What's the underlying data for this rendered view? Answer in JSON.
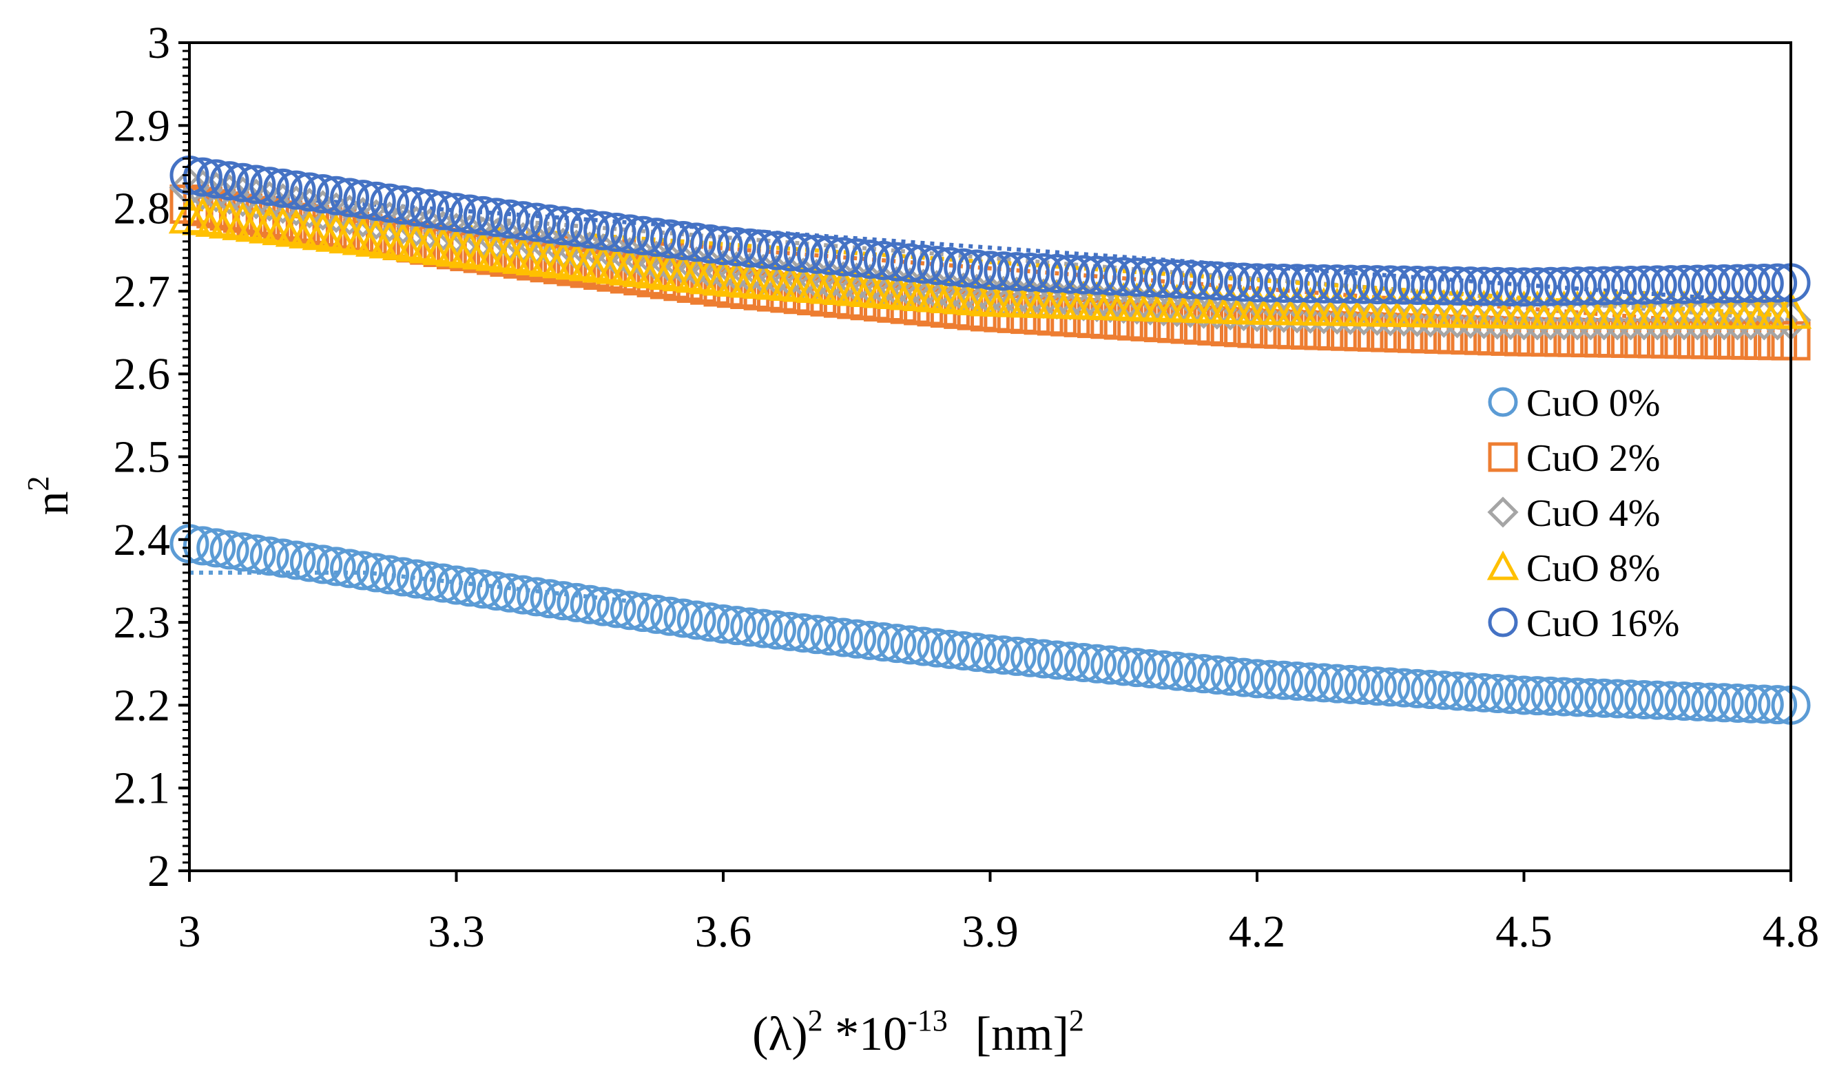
{
  "chart_data": {
    "type": "scatter",
    "x_tick_labels": [
      "3",
      "3.3",
      "3.6",
      "3.9",
      "4.2",
      "4.5",
      "4.8"
    ],
    "y_tick_labels": [
      "2",
      "2.1",
      "2.2",
      "2.3",
      "2.4",
      "2.5",
      "2.6",
      "2.7",
      "2.8",
      "2.9",
      "3"
    ],
    "xlim": [
      3,
      4.8
    ],
    "ylim": [
      2,
      3
    ],
    "xlabel": {
      "lambda": "(λ)",
      "sup1": "2",
      "mid": " *10",
      "exp": "-13",
      "unit": "[nm]",
      "sup2": "2"
    },
    "ylabel": {
      "base": "n",
      "sup": "2"
    },
    "legend_position": "right-middle",
    "series": [
      {
        "name": "CuO 0%",
        "marker": "circle",
        "color": "#5B9BD5",
        "x": [
          3.0,
          3.3,
          3.6,
          3.9,
          4.2,
          4.5,
          4.8
        ],
        "y": [
          2.395,
          2.345,
          2.298,
          2.262,
          2.232,
          2.212,
          2.2
        ],
        "fit": [
          [
            3.0,
            2.36
          ],
          [
            3.2,
            2.36
          ],
          [
            3.5,
            2.325
          ]
        ]
      },
      {
        "name": "CuO 2%",
        "marker": "square",
        "color": "#ED7D31",
        "x": [
          3.0,
          3.3,
          3.6,
          3.9,
          4.2,
          4.5,
          4.8
        ],
        "y": [
          2.805,
          2.75,
          2.705,
          2.675,
          2.655,
          2.645,
          2.64
        ],
        "fit": [
          [
            3.0,
            2.8
          ],
          [
            4.8,
            2.655
          ]
        ]
      },
      {
        "name": "CuO 4%",
        "marker": "diamond",
        "color": "#A5A5A5",
        "x": [
          3.0,
          3.3,
          3.6,
          3.9,
          4.2,
          4.5,
          4.8
        ],
        "y": [
          2.825,
          2.77,
          2.725,
          2.695,
          2.675,
          2.665,
          2.665
        ],
        "fit": [
          [
            3.0,
            2.815
          ],
          [
            4.8,
            2.665
          ]
        ]
      },
      {
        "name": "CuO 8%",
        "marker": "triangle",
        "color": "#FFC000",
        "x": [
          3.0,
          3.3,
          3.6,
          3.9,
          4.2,
          4.5,
          4.8
        ],
        "y": [
          2.79,
          2.75,
          2.715,
          2.69,
          2.68,
          2.675,
          2.675
        ],
        "fit": [
          [
            3.0,
            2.8
          ],
          [
            4.8,
            2.67
          ]
        ]
      },
      {
        "name": "CuO 16%",
        "marker": "circle",
        "color": "#4472C4",
        "x": [
          3.0,
          3.3,
          3.6,
          3.9,
          4.2,
          4.5,
          4.8
        ],
        "y": [
          2.84,
          2.795,
          2.755,
          2.725,
          2.71,
          2.705,
          2.71
        ],
        "fit": [
          [
            3.0,
            2.82
          ],
          [
            4.8,
            2.685
          ]
        ]
      }
    ]
  }
}
